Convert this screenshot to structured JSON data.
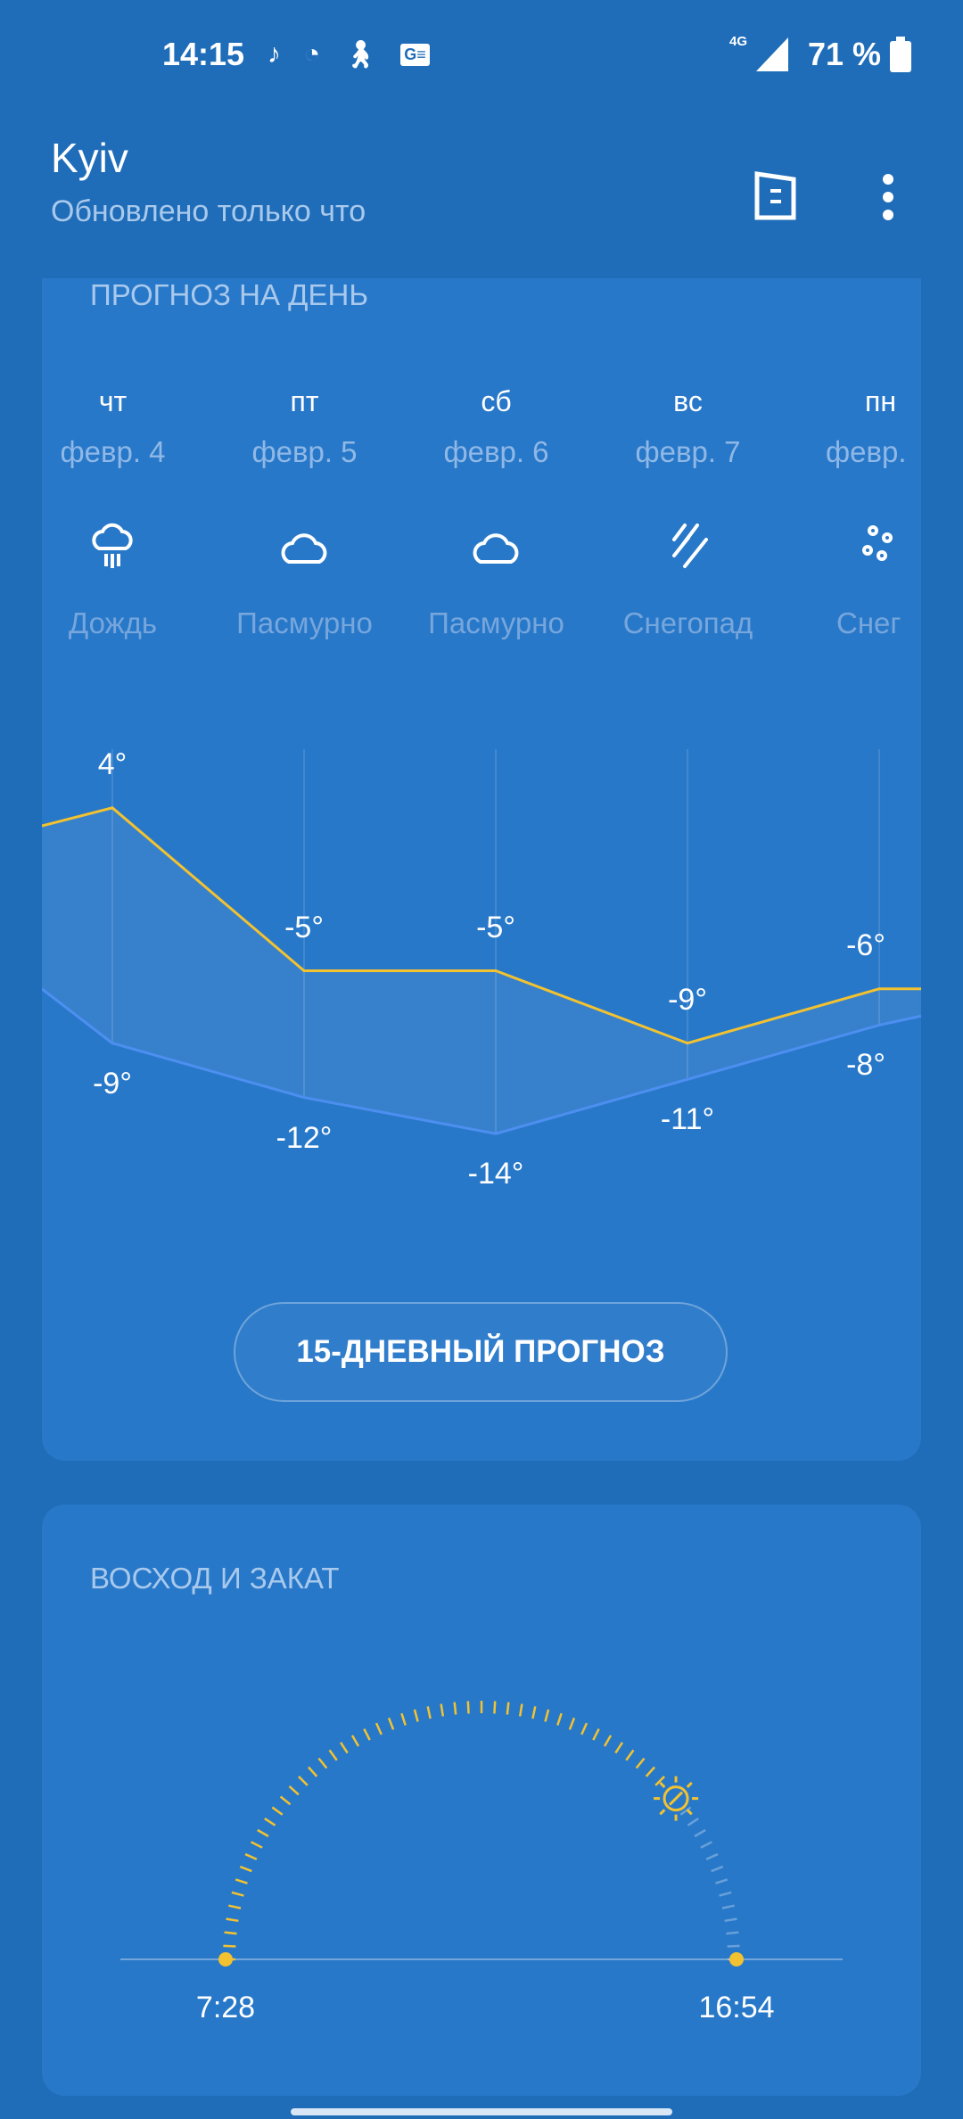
{
  "status_bar": {
    "time": "14:15",
    "network": "4G",
    "battery": "71 %",
    "icons": [
      "tiktok-icon",
      "sports-icon",
      "walking-icon",
      "news-icon"
    ]
  },
  "header": {
    "city": "Kyiv",
    "updated": "Обновлено только что",
    "actions": [
      "document-icon",
      "more-vert-icon"
    ]
  },
  "daily": {
    "title": "ПРОГНОЗ НА ДЕНЬ",
    "days": [
      {
        "day": "чт",
        "date": "февр. 4",
        "icon": "rain-icon",
        "condition": "Дождь",
        "high": "4°",
        "low": "-9°"
      },
      {
        "day": "пт",
        "date": "февр. 5",
        "icon": "cloud-icon",
        "condition": "Пасмурно",
        "high": "-5°",
        "low": "-12°"
      },
      {
        "day": "сб",
        "date": "февр. 6",
        "icon": "cloud-icon",
        "condition": "Пасмурно",
        "high": "-5°",
        "low": "-14°"
      },
      {
        "day": "вс",
        "date": "февр. 7",
        "icon": "snowfall-icon",
        "condition": "Снегопад",
        "high": "-9°",
        "low": "-11°"
      },
      {
        "day": "пн",
        "date": "февр.",
        "icon": "snow-icon",
        "condition": "Снег",
        "high": "-6°",
        "low": "-8°"
      }
    ],
    "highs": [
      4,
      -5,
      -5,
      -9,
      -6
    ],
    "lows": [
      -9,
      -12,
      -14,
      -11,
      -8
    ],
    "colors": {
      "high": "#f2c230",
      "low": "#4c8ff0"
    },
    "button": "15-ДНЕВНЫЙ ПРОГНОЗ"
  },
  "sun": {
    "title": "ВОСХОД И ЗАКАТ",
    "sunrise": "7:28",
    "sunset": "16:54",
    "progress": 0.78,
    "color": "#f2c230"
  }
}
